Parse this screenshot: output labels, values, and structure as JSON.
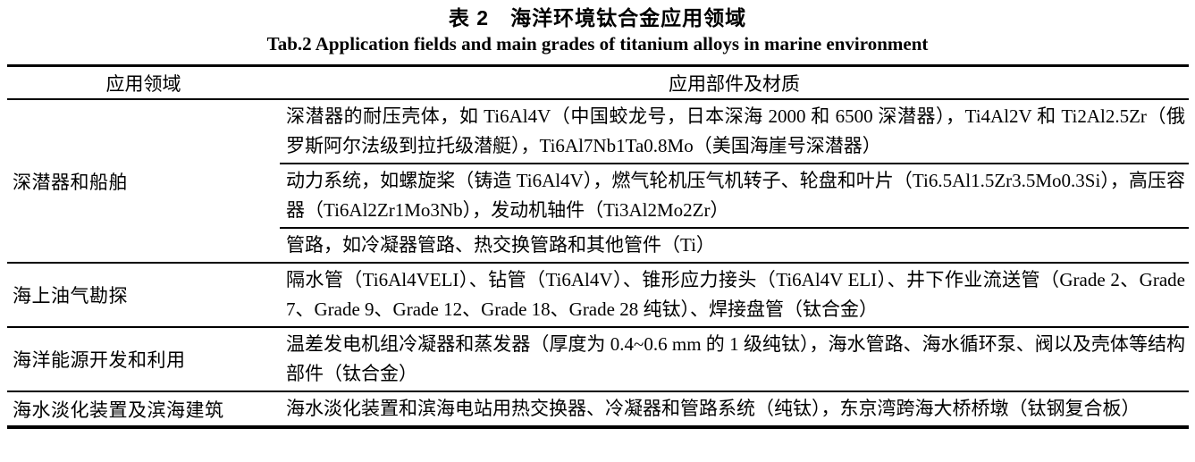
{
  "title": {
    "zh": "表 2　海洋环境钛合金应用领域",
    "en": "Tab.2 Application fields and main grades of titanium alloys in marine environment"
  },
  "table": {
    "headers": {
      "field": "应用领域",
      "application": "应用部件及材质"
    },
    "rows": [
      {
        "field": "深潜器和船舶",
        "applications": [
          "深潜器的耐压壳体，如 Ti6Al4V（中国蛟龙号，日本深海 2000 和 6500 深潜器），Ti4Al2V 和 Ti2Al2.5Zr（俄罗斯阿尔法级到拉托级潜艇），Ti6Al7Nb1Ta0.8Mo（美国海崖号深潜器）",
          "动力系统，如螺旋桨（铸造 Ti6Al4V），燃气轮机压气机转子、轮盘和叶片（Ti6.5Al1.5Zr3.5Mo0.3Si），高压容器（Ti6Al2Zr1Mo3Nb），发动机轴件（Ti3Al2Mo2Zr）",
          "管路，如冷凝器管路、热交换管路和其他管件（Ti）"
        ]
      },
      {
        "field": "海上油气勘探",
        "applications": [
          "隔水管（Ti6Al4VELI）、钻管（Ti6Al4V）、锥形应力接头（Ti6Al4V ELI）、井下作业流送管（Grade 2、Grade 7、Grade 9、Grade 12、Grade 18、Grade 28 纯钛）、焊接盘管（钛合金）"
        ]
      },
      {
        "field": "海洋能源开发和利用",
        "applications": [
          "温差发电机组冷凝器和蒸发器（厚度为 0.4~0.6 mm 的 1 级纯钛），海水管路、海水循环泵、阀以及壳体等结构部件（钛合金）"
        ]
      },
      {
        "field": "海水淡化装置及滨海建筑",
        "applications": [
          "海水淡化装置和滨海电站用热交换器、冷凝器和管路系统（纯钛），东京湾跨海大桥桥墩（钛钢复合板）"
        ]
      }
    ]
  }
}
